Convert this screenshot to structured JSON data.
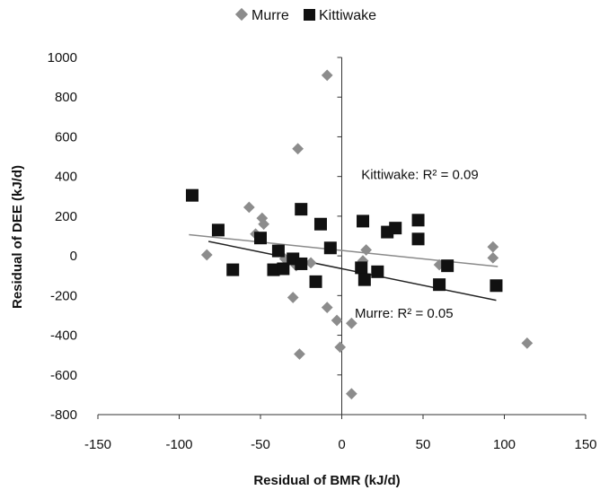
{
  "chart_data": {
    "type": "scatter",
    "title": "",
    "xlabel": "Residual of BMR (kJ/d)",
    "ylabel": "Residual of DEE (kJ/d)",
    "xlim": [
      -150,
      150
    ],
    "ylim": [
      -800,
      1000
    ],
    "xticks": [
      -150,
      -100,
      -50,
      0,
      50,
      100,
      150
    ],
    "yticks": [
      -800,
      -600,
      -400,
      -200,
      0,
      200,
      400,
      600,
      800,
      1000
    ],
    "grid": false,
    "legend_position": "top",
    "series": [
      {
        "name": "Murre",
        "marker": "diamond",
        "color": "#8c8c8c",
        "points": [
          [
            -83,
            5
          ],
          [
            -57,
            245
          ],
          [
            -53,
            110
          ],
          [
            -49,
            190
          ],
          [
            -48,
            160
          ],
          [
            -35,
            -15
          ],
          [
            -28,
            -50
          ],
          [
            -27,
            540
          ],
          [
            -30,
            -210
          ],
          [
            -26,
            -495
          ],
          [
            -19,
            -35
          ],
          [
            -9,
            910
          ],
          [
            -9,
            -260
          ],
          [
            -3,
            -325
          ],
          [
            -1,
            -460
          ],
          [
            6,
            -340
          ],
          [
            6,
            -695
          ],
          [
            13,
            -25
          ],
          [
            15,
            30
          ],
          [
            60,
            -45
          ],
          [
            93,
            45
          ],
          [
            93,
            -10
          ],
          [
            114,
            -440
          ]
        ],
        "trendline": {
          "x": [
            -94,
            96
          ],
          "y": [
            107,
            -54
          ]
        }
      },
      {
        "name": "Kittiwake",
        "marker": "square",
        "color": "#111111",
        "points": [
          [
            -92,
            305
          ],
          [
            -76,
            130
          ],
          [
            -67,
            -70
          ],
          [
            -50,
            90
          ],
          [
            -42,
            -70
          ],
          [
            -39,
            25
          ],
          [
            -36,
            -65
          ],
          [
            -30,
            -15
          ],
          [
            -25,
            -40
          ],
          [
            -25,
            235
          ],
          [
            -16,
            -130
          ],
          [
            -13,
            160
          ],
          [
            -7,
            40
          ],
          [
            12,
            -60
          ],
          [
            13,
            175
          ],
          [
            14,
            -120
          ],
          [
            22,
            -80
          ],
          [
            28,
            120
          ],
          [
            33,
            140
          ],
          [
            47,
            180
          ],
          [
            47,
            85
          ],
          [
            60,
            -145
          ],
          [
            65,
            -50
          ],
          [
            95,
            -150
          ]
        ],
        "trendline": {
          "x": [
            -82,
            95
          ],
          "y": [
            73,
            -224
          ]
        }
      }
    ],
    "annotations": [
      {
        "text": "Kittiwake: R² = 0.09",
        "x": 12,
        "y": 410
      },
      {
        "text": "Murre: R² = 0.05",
        "x": 8,
        "y": -290
      }
    ]
  }
}
